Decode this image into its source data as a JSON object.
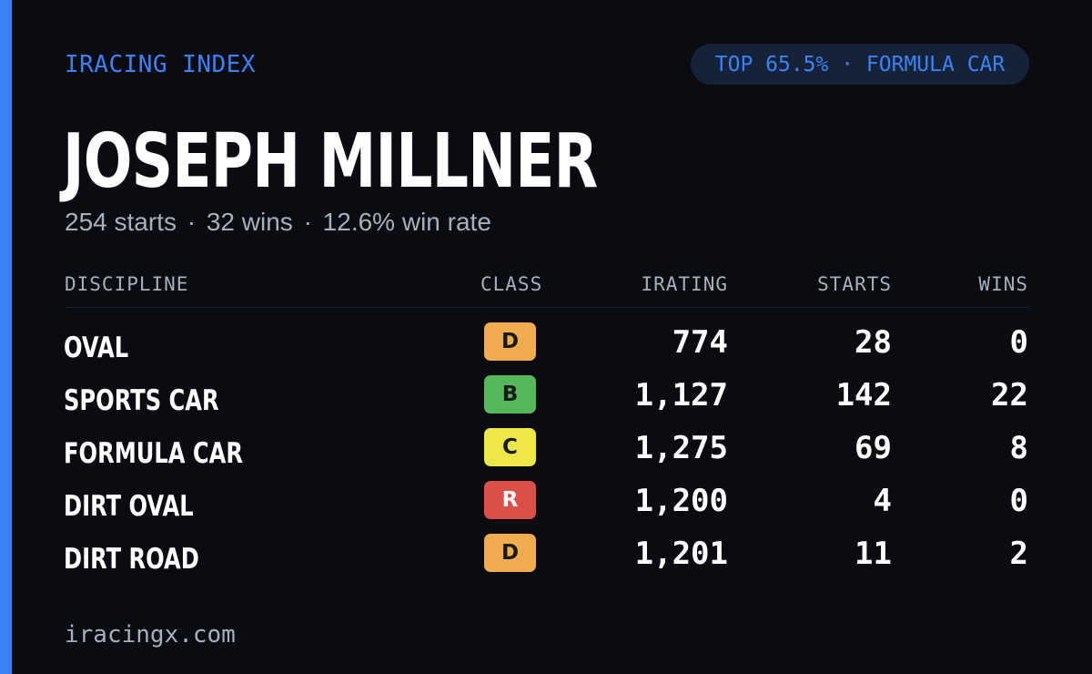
{
  "brand": "IRACING INDEX",
  "rank_pill": "TOP 65.5% · FORMULA CAR",
  "player": {
    "name": "JOSEPH MILLNER"
  },
  "summary": {
    "starts": "254 starts",
    "wins": "32 wins",
    "win_rate": "12.6% win rate",
    "separator": "·"
  },
  "table": {
    "headers": {
      "discipline": "DISCIPLINE",
      "class": "CLASS",
      "irating": "IRATING",
      "starts": "STARTS",
      "wins": "WINS"
    },
    "rows": [
      {
        "discipline": "OVAL",
        "class": "D",
        "class_color": "#f0ac4e",
        "irating": "774",
        "starts": "28",
        "wins": "0"
      },
      {
        "discipline": "SPORTS CAR",
        "class": "B",
        "class_color": "#55b85a",
        "irating": "1,127",
        "starts": "142",
        "wins": "22"
      },
      {
        "discipline": "FORMULA CAR",
        "class": "C",
        "class_color": "#ede74a",
        "irating": "1,275",
        "starts": "69",
        "wins": "8"
      },
      {
        "discipline": "DIRT OVAL",
        "class": "R",
        "class_color": "#db5049",
        "irating": "1,200",
        "starts": "4",
        "wins": "0"
      },
      {
        "discipline": "DIRT ROAD",
        "class": "D",
        "class_color": "#f0ac4e",
        "irating": "1,201",
        "starts": "11",
        "wins": "2"
      }
    ]
  },
  "footer": "iracingx.com",
  "colors": {
    "accent": "#3b82f6",
    "background": "#0a0c12",
    "muted_text": "#a7afbd",
    "pill_bg": "#152238"
  }
}
